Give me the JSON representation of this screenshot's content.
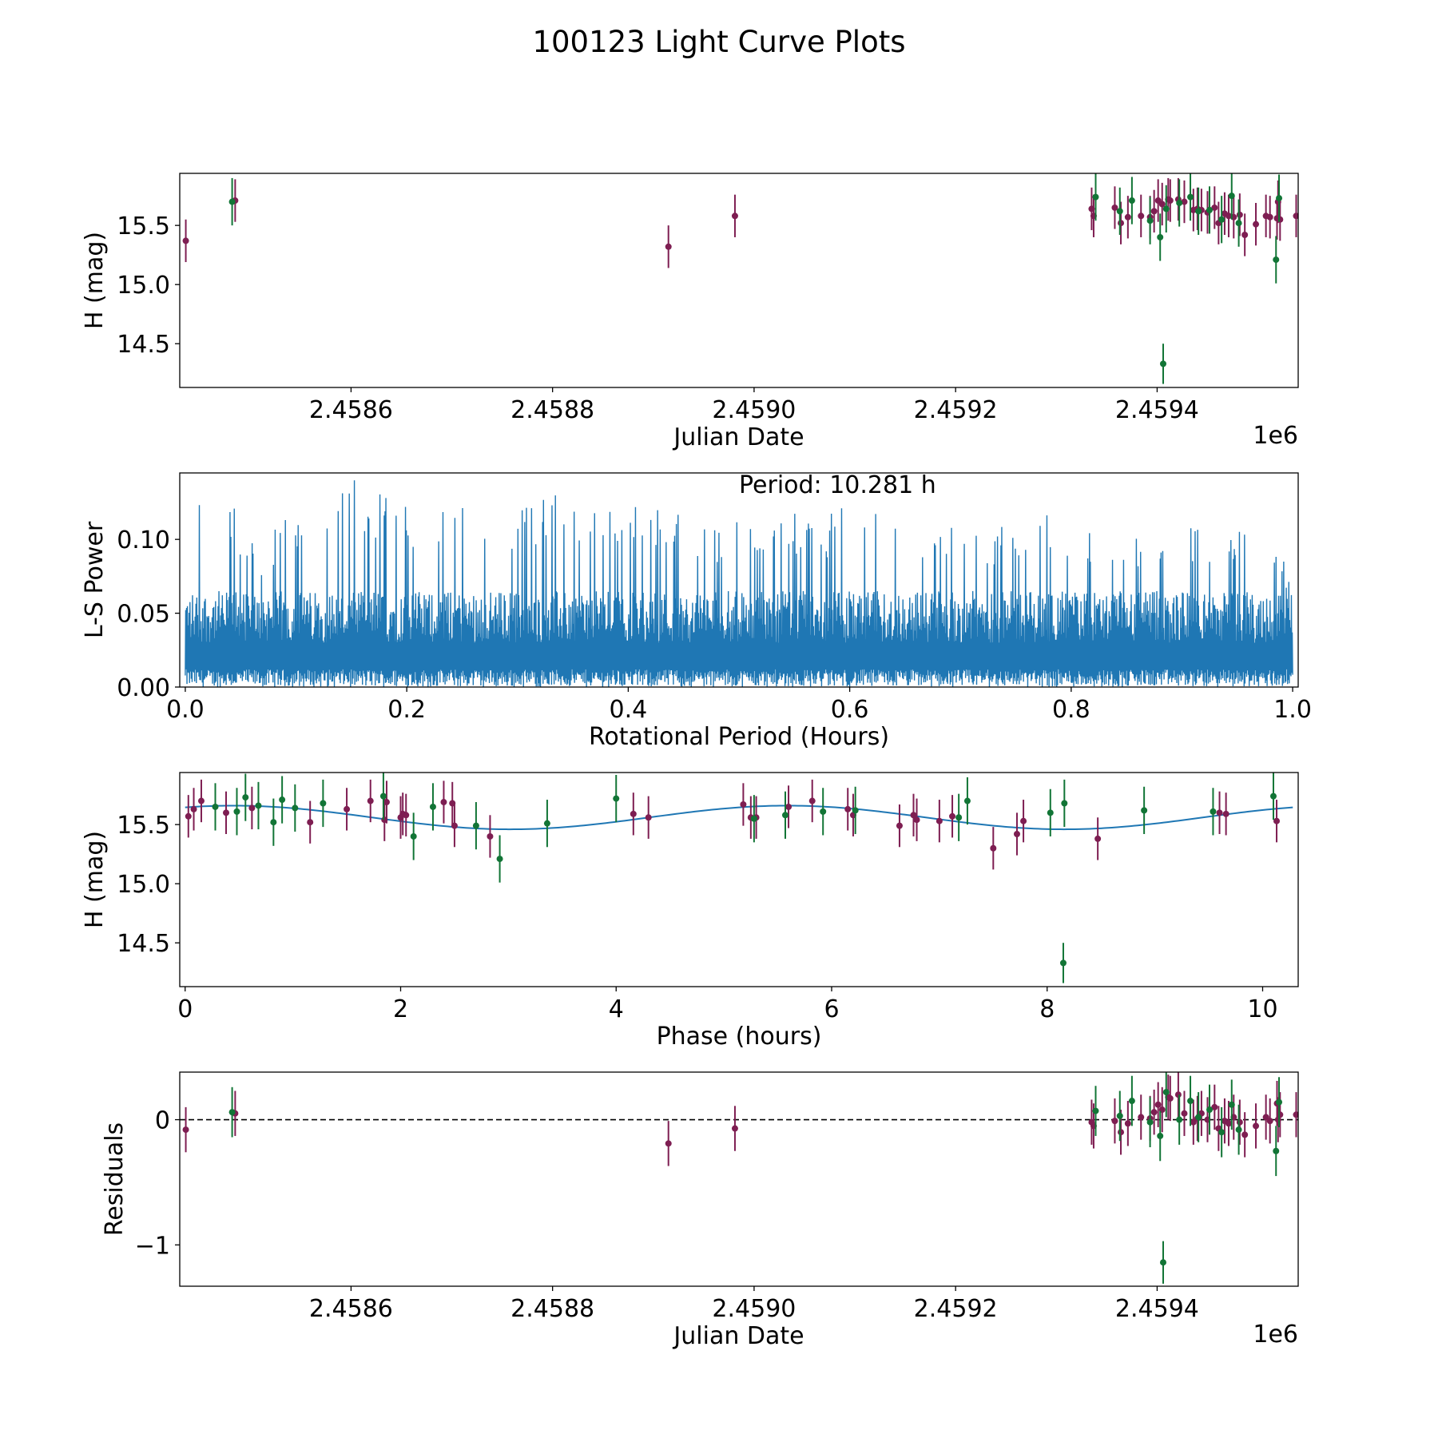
{
  "figure": {
    "title": "100123 Light Curve Plots",
    "colors": {
      "series_a": "#7e1e52",
      "series_b": "#127536",
      "line": "#1f77b4",
      "zero_line": "#000000"
    }
  },
  "chart_data": [
    {
      "type": "scatter",
      "name": "light-curve",
      "title": "",
      "xlabel": "Julian Date",
      "ylabel": "H (mag)",
      "x_offset_label": "1e6",
      "xlim": [
        2.45843,
        2.45954
      ],
      "ylim": [
        14.13,
        15.94
      ],
      "xticks": [
        2.4586,
        2.4588,
        2.459,
        2.4592,
        2.4594
      ],
      "xtick_labels": [
        "2.4586",
        "2.4588",
        "2.4590",
        "2.4592",
        "2.4594"
      ],
      "yticks": [
        14.5,
        15.0,
        15.5
      ],
      "ytick_labels": [
        "14.5",
        "15.0",
        "15.5"
      ],
      "series": [
        {
          "name": "band-a",
          "color": "#7e1e52",
          "err": 0.18,
          "x": [
            2.458436,
            2.458485,
            2.458915,
            2.458981,
            2.459335,
            2.459337,
            2.459358,
            2.459364,
            2.459371,
            2.459384,
            2.459393,
            2.459397,
            2.459401,
            2.459405,
            2.459411,
            2.459413,
            2.459421,
            2.459427,
            2.459436,
            2.45944,
            2.459444,
            2.45945,
            2.459457,
            2.459461,
            2.459467,
            2.459471,
            2.459476,
            2.459482,
            2.459487,
            2.459498,
            2.459508,
            2.459512,
            2.459519,
            2.45952,
            2.459522,
            2.459538
          ],
          "y": [
            15.37,
            15.71,
            15.32,
            15.58,
            15.64,
            15.58,
            15.65,
            15.52,
            15.57,
            15.58,
            15.57,
            15.62,
            15.71,
            15.68,
            15.72,
            15.71,
            15.72,
            15.7,
            15.63,
            15.64,
            15.63,
            15.61,
            15.65,
            15.52,
            15.6,
            15.58,
            15.57,
            15.59,
            15.42,
            15.51,
            15.58,
            15.57,
            15.56,
            15.7,
            15.55,
            15.58
          ]
        },
        {
          "name": "band-b",
          "color": "#127536",
          "err": 0.2,
          "x": [
            2.458482,
            2.459339,
            2.459363,
            2.459375,
            2.459393,
            2.459403,
            2.459409,
            2.459422,
            2.459433,
            2.459441,
            2.459452,
            2.459464,
            2.459474,
            2.459481,
            2.459518,
            2.459521
          ],
          "y": [
            15.7,
            15.74,
            15.62,
            15.71,
            15.54,
            15.4,
            15.64,
            15.69,
            15.74,
            15.62,
            15.63,
            15.55,
            15.75,
            15.52,
            15.21,
            15.73
          ]
        },
        {
          "name": "band-b-outlier",
          "color": "#127536",
          "err": 0.17,
          "x": [
            2.459406
          ],
          "y": [
            14.33
          ]
        }
      ]
    },
    {
      "type": "line",
      "name": "periodogram",
      "title": "",
      "xlabel": "Rotational Period (Hours)",
      "ylabel": "L-S Power",
      "annotation": "Period: 10.281 h",
      "xlim": [
        -0.005,
        1.005
      ],
      "ylim": [
        0.0,
        0.145
      ],
      "xticks": [
        0.0,
        0.2,
        0.4,
        0.6,
        0.8,
        1.0
      ],
      "xtick_labels": [
        "0.0",
        "0.2",
        "0.4",
        "0.6",
        "0.8",
        "1.0"
      ],
      "yticks": [
        0.0,
        0.05,
        0.1
      ],
      "ytick_labels": [
        "0.00",
        "0.05",
        "0.10"
      ],
      "series": [
        {
          "name": "L-S power",
          "color": "#1f77b4",
          "x": [
            0.0,
            0.005,
            0.013,
            0.022,
            0.031,
            0.04,
            0.055,
            0.07,
            0.085,
            0.1,
            0.115,
            0.13,
            0.15,
            0.165,
            0.18,
            0.195,
            0.21,
            0.225,
            0.24,
            0.255,
            0.27,
            0.3,
            0.33,
            0.36,
            0.39,
            0.42,
            0.45,
            0.48,
            0.51,
            0.54,
            0.57,
            0.6,
            0.63,
            0.66,
            0.69,
            0.72,
            0.75,
            0.78,
            0.81,
            0.84,
            0.87,
            0.9,
            0.93,
            0.96,
            0.99,
            1.0
          ],
          "y": [
            0.04,
            0.098,
            0.135,
            0.104,
            0.112,
            0.132,
            0.105,
            0.09,
            0.113,
            0.126,
            0.115,
            0.12,
            0.145,
            0.125,
            0.134,
            0.145,
            0.118,
            0.124,
            0.146,
            0.132,
            0.128,
            0.121,
            0.131,
            0.126,
            0.132,
            0.124,
            0.117,
            0.112,
            0.118,
            0.122,
            0.112,
            0.127,
            0.119,
            0.113,
            0.11,
            0.108,
            0.11,
            0.122,
            0.107,
            0.102,
            0.108,
            0.117,
            0.1,
            0.108,
            0.099,
            0.06
          ]
        }
      ]
    },
    {
      "type": "scatter",
      "name": "phase-folded",
      "title": "",
      "xlabel": "Phase (hours)",
      "ylabel": "H (mag)",
      "xlim": [
        -0.05,
        10.33
      ],
      "ylim": [
        14.13,
        15.94
      ],
      "xticks": [
        0,
        2,
        4,
        6,
        8,
        10
      ],
      "xtick_labels": [
        "0",
        "2",
        "4",
        "6",
        "8",
        "10"
      ],
      "yticks": [
        14.5,
        15.0,
        15.5
      ],
      "ytick_labels": [
        "14.5",
        "15.0",
        "15.5"
      ],
      "fit": {
        "name": "sinusoid-fit",
        "color": "#1f77b4",
        "mean": 15.56,
        "amplitude": 0.1,
        "period_hours": 5.14,
        "phase_hours": 0.45,
        "x_range": [
          0.0,
          10.28
        ]
      },
      "series": [
        {
          "name": "band-a",
          "color": "#7e1e52",
          "err": 0.18,
          "x": [
            0.03,
            0.08,
            0.15,
            0.38,
            0.62,
            1.16,
            1.5,
            1.72,
            1.85,
            1.87,
            2.0,
            2.02,
            2.05,
            2.4,
            2.48,
            2.5,
            2.83,
            4.16,
            4.3,
            5.18,
            5.25,
            5.3,
            5.6,
            5.82,
            6.15,
            6.2,
            6.63,
            6.76,
            6.79,
            7.0,
            7.12,
            7.5,
            7.72,
            7.78,
            8.47,
            9.6,
            9.66,
            10.13
          ],
          "y": [
            15.57,
            15.63,
            15.7,
            15.6,
            15.64,
            15.52,
            15.63,
            15.7,
            15.54,
            15.69,
            15.56,
            15.59,
            15.58,
            15.69,
            15.68,
            15.49,
            15.4,
            15.59,
            15.56,
            15.67,
            15.56,
            15.56,
            15.65,
            15.7,
            15.63,
            15.58,
            15.49,
            15.58,
            15.54,
            15.53,
            15.57,
            15.3,
            15.42,
            15.53,
            15.38,
            15.6,
            15.59,
            15.53
          ]
        },
        {
          "name": "band-b",
          "color": "#127536",
          "err": 0.2,
          "x": [
            0.28,
            0.48,
            0.56,
            0.68,
            0.82,
            0.9,
            1.02,
            1.28,
            1.84,
            2.12,
            2.3,
            2.7,
            2.92,
            3.36,
            4.0,
            5.28,
            5.57,
            5.92,
            6.22,
            7.18,
            7.26,
            8.03,
            8.16,
            8.9,
            9.54,
            10.1
          ],
          "y": [
            15.65,
            15.61,
            15.73,
            15.66,
            15.52,
            15.71,
            15.64,
            15.68,
            15.74,
            15.4,
            15.65,
            15.49,
            15.21,
            15.51,
            15.72,
            15.55,
            15.58,
            15.61,
            15.62,
            15.56,
            15.7,
            15.6,
            15.68,
            15.62,
            15.61,
            15.74
          ]
        },
        {
          "name": "band-b-outlier",
          "color": "#127536",
          "err": 0.17,
          "x": [
            8.15
          ],
          "y": [
            14.33
          ]
        }
      ]
    },
    {
      "type": "scatter",
      "name": "residuals",
      "title": "",
      "xlabel": "Julian Date",
      "ylabel": "Residuals",
      "x_offset_label": "1e6",
      "xlim": [
        2.45843,
        2.45954
      ],
      "ylim": [
        -1.33,
        0.38
      ],
      "xticks": [
        2.4586,
        2.4588,
        2.459,
        2.4592,
        2.4594
      ],
      "xtick_labels": [
        "2.4586",
        "2.4588",
        "2.4590",
        "2.4592",
        "2.4594"
      ],
      "yticks": [
        -1,
        0
      ],
      "ytick_labels": [
        "−1",
        "0"
      ],
      "zero_line": 0,
      "series": [
        {
          "name": "band-a",
          "color": "#7e1e52",
          "err": 0.18,
          "x": [
            2.458436,
            2.458485,
            2.458915,
            2.458981,
            2.459335,
            2.459337,
            2.459358,
            2.459364,
            2.459371,
            2.459384,
            2.459393,
            2.459397,
            2.459401,
            2.459405,
            2.459411,
            2.459413,
            2.459421,
            2.459427,
            2.459436,
            2.45944,
            2.459444,
            2.45945,
            2.459457,
            2.459461,
            2.459467,
            2.459471,
            2.459476,
            2.459482,
            2.459487,
            2.459498,
            2.459508,
            2.459512,
            2.459519,
            2.45952,
            2.459522,
            2.459538
          ],
          "y": [
            -0.08,
            0.05,
            -0.19,
            -0.07,
            -0.02,
            -0.05,
            -0.01,
            -0.1,
            -0.03,
            0.02,
            0.01,
            0.06,
            0.12,
            0.08,
            0.18,
            0.17,
            0.2,
            0.05,
            -0.02,
            0.01,
            0.05,
            0.0,
            0.1,
            -0.07,
            -0.01,
            -0.03,
            0.02,
            -0.02,
            -0.12,
            -0.05,
            0.02,
            -0.01,
            0.13,
            0.0,
            0.04,
            0.04
          ]
        },
        {
          "name": "band-b",
          "color": "#127536",
          "err": 0.2,
          "x": [
            2.458482,
            2.459339,
            2.459363,
            2.459375,
            2.459393,
            2.459403,
            2.459409,
            2.459422,
            2.459433,
            2.459441,
            2.459452,
            2.459464,
            2.459474,
            2.459481,
            2.459518,
            2.459521
          ],
          "y": [
            0.06,
            0.07,
            0.03,
            0.15,
            -0.02,
            -0.13,
            0.22,
            0.0,
            0.15,
            0.02,
            0.08,
            -0.1,
            0.12,
            -0.08,
            -0.25,
            0.14
          ]
        },
        {
          "name": "band-b-outlier",
          "color": "#127536",
          "err": 0.17,
          "x": [
            2.459406
          ],
          "y": [
            -1.14
          ]
        }
      ]
    }
  ]
}
